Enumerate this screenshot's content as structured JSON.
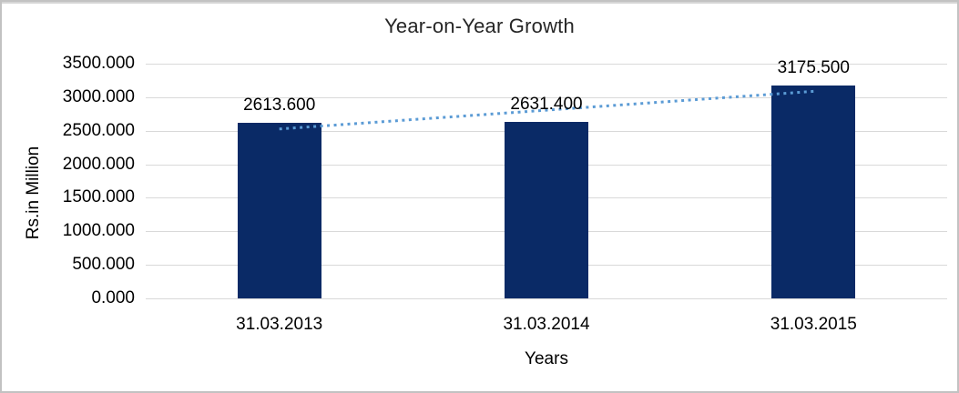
{
  "chart_data": {
    "type": "bar",
    "title": "Year-on-Year Growth",
    "xlabel": "Years",
    "ylabel": "Rs.in Million",
    "categories": [
      "31.03.2013",
      "31.03.2014",
      "31.03.2015"
    ],
    "values": [
      2613.6,
      2631.4,
      3175.5
    ],
    "data_labels": [
      "2613.600",
      "2631.400",
      "3175.500"
    ],
    "ylim": [
      0,
      3500
    ],
    "ytick_step": 500,
    "ytick_labels": [
      "0.000",
      "500.000",
      "1000.000",
      "1500.000",
      "2000.000",
      "2500.000",
      "3000.000",
      "3500.000"
    ],
    "grid": true,
    "legend": "none",
    "trendline": {
      "type": "linear",
      "style": "dotted",
      "color": "#5b9bd5"
    },
    "colors": {
      "bar": "#0a2a66",
      "gridline": "#d9d9d9",
      "text": "#000000",
      "title_text": "#262626",
      "frame_border": "#c2c2c2"
    }
  }
}
